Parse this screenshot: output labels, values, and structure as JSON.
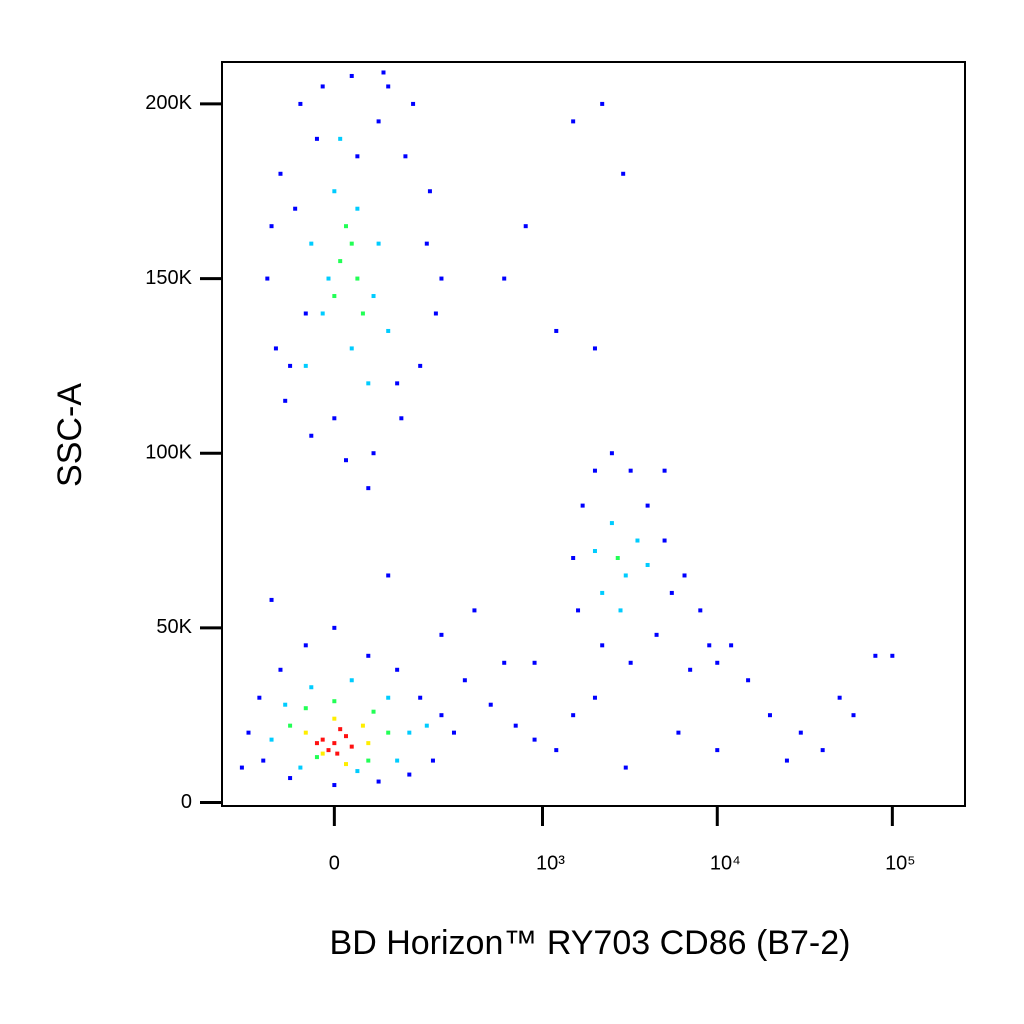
{
  "chart_data": {
    "type": "scatter",
    "xlabel": "BD Horizon™ RY703 CD86 (B7-2)",
    "ylabel": "SSC-A",
    "xscale": "biexponential",
    "xlim": [
      -270,
      260000
    ],
    "ylim": [
      -1000,
      212000
    ],
    "xticks": [
      0,
      {
        "value": 1000,
        "label": "10³"
      },
      {
        "value": 10000,
        "label": "10⁴"
      },
      {
        "value": 100000,
        "label": "10⁵"
      }
    ],
    "yticks": [
      0,
      {
        "value": 50000,
        "label": "50K"
      },
      {
        "value": 100000,
        "label": "100K"
      },
      {
        "value": 150000,
        "label": "150K"
      },
      {
        "value": 200000,
        "label": "200K"
      }
    ],
    "series": [
      {
        "color": "#0000ff",
        "x": [
          -100,
          -60,
          -20,
          30,
          80,
          140,
          200,
          -130,
          -110,
          -90,
          -40,
          20,
          70,
          130,
          180,
          230,
          -70,
          100,
          -30,
          160,
          -120,
          60,
          210,
          -80,
          120,
          250,
          0,
          40,
          -50,
          90,
          1500,
          2200,
          2900,
          800,
          600,
          1200,
          5000,
          2000,
          -200,
          -180,
          -150,
          -100,
          -50,
          0,
          60,
          120,
          180,
          250,
          300,
          220,
          150,
          80,
          0,
          -80,
          -140,
          350,
          500,
          700,
          900,
          400,
          -120,
          100,
          250,
          600,
          1500,
          1700,
          2000,
          2500,
          3200,
          4000,
          5000,
          5500,
          4500,
          3200,
          2200,
          1600,
          6500,
          8000,
          9000,
          10000,
          12000,
          7000,
          15000,
          20000,
          30000,
          50000,
          80000,
          100000,
          60000,
          40000,
          3000,
          1500,
          2000,
          6000,
          10000,
          25000,
          900,
          1200
        ],
        "values": [
          180000,
          200000,
          205000,
          208000,
          195000,
          185000,
          160000,
          150000,
          130000,
          115000,
          105000,
          98000,
          100000,
          110000,
          125000,
          140000,
          170000,
          205000,
          190000,
          200000,
          165000,
          90000,
          175000,
          125000,
          120000,
          150000,
          110000,
          185000,
          140000,
          209000,
          195000,
          200000,
          180000,
          165000,
          150000,
          135000,
          95000,
          130000,
          10000,
          20000,
          30000,
          38000,
          45000,
          50000,
          42000,
          38000,
          30000,
          25000,
          20000,
          12000,
          8000,
          6000,
          5000,
          7000,
          12000,
          35000,
          28000,
          22000,
          18000,
          55000,
          58000,
          65000,
          48000,
          40000,
          70000,
          85000,
          95000,
          100000,
          95000,
          85000,
          75000,
          60000,
          48000,
          40000,
          45000,
          55000,
          65000,
          55000,
          45000,
          40000,
          45000,
          38000,
          35000,
          25000,
          20000,
          30000,
          42000,
          42000,
          25000,
          15000,
          10000,
          25000,
          30000,
          20000,
          15000,
          12000,
          40000,
          15000
        ]
      },
      {
        "color": "#00ccff",
        "x": [
          -40,
          0,
          40,
          80,
          -20,
          30,
          70,
          100,
          -50,
          10,
          60,
          -10,
          -120,
          -90,
          -40,
          30,
          100,
          150,
          120,
          40,
          -60,
          200,
          2000,
          2500,
          3000,
          3500,
          2800,
          2200,
          4000
        ],
        "values": [
          160000,
          175000,
          170000,
          160000,
          140000,
          130000,
          145000,
          135000,
          125000,
          190000,
          120000,
          150000,
          18000,
          28000,
          33000,
          35000,
          30000,
          20000,
          12000,
          9000,
          10000,
          22000,
          72000,
          80000,
          65000,
          75000,
          55000,
          60000,
          68000
        ]
      },
      {
        "color": "#22ff55",
        "x": [
          10,
          40,
          20,
          50,
          0,
          30,
          -80,
          -50,
          0,
          70,
          100,
          60,
          -30,
          2700
        ],
        "values": [
          155000,
          150000,
          165000,
          140000,
          145000,
          160000,
          22000,
          27000,
          29000,
          26000,
          20000,
          12000,
          13000,
          70000
        ]
      },
      {
        "color": "#ffee00",
        "x": [
          -50,
          0,
          50,
          -20,
          60,
          20
        ],
        "values": [
          20000,
          24000,
          22000,
          14000,
          17000,
          11000
        ]
      },
      {
        "color": "#ff1010",
        "x": [
          -20,
          0,
          20,
          -10,
          10,
          30,
          -30,
          5
        ],
        "values": [
          18000,
          17000,
          19000,
          15000,
          21000,
          16000,
          17000,
          14000
        ]
      }
    ]
  }
}
